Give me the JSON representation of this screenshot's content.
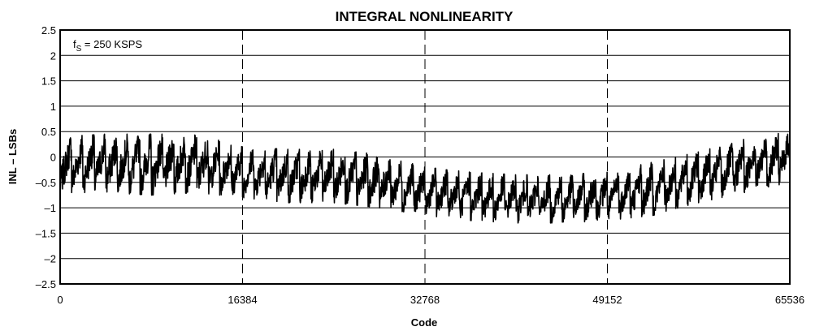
{
  "chart_data": {
    "type": "line",
    "title": "INTEGRAL NONLINEARITY",
    "xlabel": "Code",
    "ylabel": "INL – LSBs",
    "xlim": [
      0,
      65536
    ],
    "ylim": [
      -2.5,
      2.5
    ],
    "x_ticks": [
      {
        "value": 0,
        "label": "0"
      },
      {
        "value": 16384,
        "label": "16384"
      },
      {
        "value": 32768,
        "label": "32768"
      },
      {
        "value": 49152,
        "label": "49152"
      },
      {
        "value": 65536,
        "label": "65536"
      }
    ],
    "y_ticks": [
      {
        "value": 2.5,
        "label": "2.5"
      },
      {
        "value": 2,
        "label": "2"
      },
      {
        "value": 1.5,
        "label": "1.5"
      },
      {
        "value": 1,
        "label": "1"
      },
      {
        "value": 0.5,
        "label": "0.5"
      },
      {
        "value": 0,
        "label": "0"
      },
      {
        "value": -0.5,
        "label": "–0.5"
      },
      {
        "value": -1,
        "label": "–1"
      },
      {
        "value": -1.5,
        "label": "–1.5"
      },
      {
        "value": -2,
        "label": "–2"
      },
      {
        "value": -2.5,
        "label": "–2.5"
      }
    ],
    "grid": {
      "horizontal": "solid",
      "vertical": "dashed",
      "vertical_at": [
        16384,
        32768,
        49152
      ]
    },
    "annotation": {
      "main": "f",
      "subscript": "S",
      "rest": " = 250 KSPS"
    },
    "series_color": "#000000",
    "series": [
      {
        "x": [
          0,
          4096,
          8192,
          12288,
          16384,
          20480,
          24576,
          28672,
          32768,
          36864,
          40960,
          45056,
          49152,
          53248,
          57344,
          61440,
          65536
        ],
        "max": [
          0.4,
          0.45,
          0.45,
          0.45,
          0.2,
          0.15,
          0.15,
          0.05,
          -0.2,
          -0.3,
          -0.35,
          -0.35,
          -0.3,
          -0.1,
          0.1,
          0.35,
          0.5
        ],
        "min": [
          -0.7,
          -0.7,
          -0.75,
          -0.7,
          -0.8,
          -0.9,
          -0.9,
          -1.0,
          -1.15,
          -1.25,
          -1.3,
          -1.3,
          -1.25,
          -1.15,
          -0.9,
          -0.7,
          -0.5
        ]
      }
    ]
  }
}
